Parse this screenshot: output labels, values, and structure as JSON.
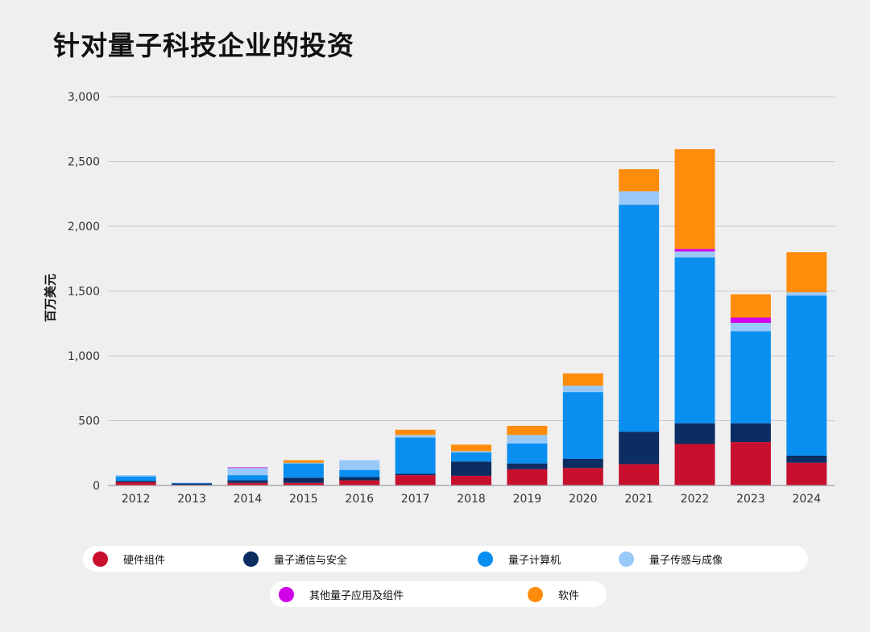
{
  "chart_data": {
    "type": "bar",
    "stacked": true,
    "title": "针对量子科技企业的投资",
    "ylabel": "百万美元",
    "xlabel": "",
    "ylim": [
      0,
      3000
    ],
    "yticks": [
      0,
      500,
      1000,
      1500,
      2000,
      2500,
      3000
    ],
    "ytick_labels": [
      "0",
      "500",
      "1,000",
      "1,500",
      "2,000",
      "2,500",
      "3,000"
    ],
    "grid": true,
    "legend_position": "bottom",
    "categories": [
      "2012",
      "2013",
      "2014",
      "2015",
      "2016",
      "2017",
      "2018",
      "2019",
      "2020",
      "2021",
      "2022",
      "2023",
      "2024"
    ],
    "series": [
      {
        "name": "硬件组件",
        "color": "#c8102e",
        "values": [
          25,
          5,
          20,
          20,
          40,
          80,
          75,
          125,
          135,
          165,
          320,
          335,
          175
        ]
      },
      {
        "name": "量子通信与安全",
        "color": "#0b2d61",
        "values": [
          10,
          10,
          20,
          40,
          25,
          10,
          110,
          45,
          70,
          250,
          160,
          145,
          55
        ]
      },
      {
        "name": "量子计算机",
        "color": "#0a8ff0",
        "values": [
          35,
          5,
          40,
          110,
          55,
          280,
          70,
          155,
          515,
          1750,
          1280,
          710,
          1235
        ]
      },
      {
        "name": "量子传感与成像",
        "color": "#99c9f9",
        "values": [
          10,
          0,
          55,
          5,
          75,
          20,
          10,
          65,
          50,
          105,
          45,
          65,
          25
        ]
      },
      {
        "name": "其他量子应用及组件",
        "color": "#d100e8",
        "values": [
          0,
          0,
          5,
          0,
          0,
          0,
          0,
          0,
          0,
          0,
          20,
          40,
          0
        ]
      },
      {
        "name": "软件",
        "color": "#ff8c0a",
        "values": [
          0,
          0,
          0,
          20,
          0,
          40,
          50,
          70,
          95,
          170,
          770,
          180,
          310
        ]
      }
    ]
  }
}
